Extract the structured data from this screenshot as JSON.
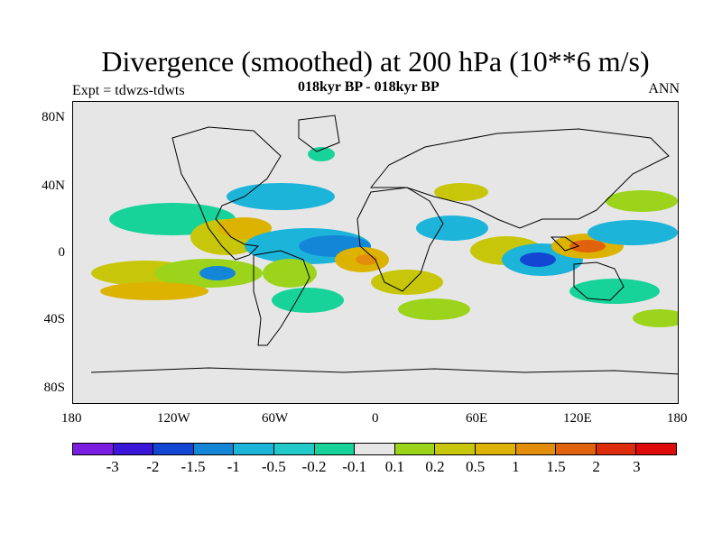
{
  "title": "Divergence (smoothed) at 200 hPa (10**6 m/s)",
  "subtitle": "018kyr BP - 018kyr BP",
  "expt": "Expt = tdwzs-tdwts",
  "season": "ANN",
  "y_ticks": [
    "80N",
    "40N",
    "0",
    "40S",
    "80S"
  ],
  "x_ticks": [
    "180",
    "120W",
    "60W",
    "0",
    "60E",
    "120E",
    "180"
  ],
  "colorbar": {
    "colors": [
      "#7b1de0",
      "#3a16d9",
      "#1346d2",
      "#1386d8",
      "#1db4da",
      "#22c9c8",
      "#17d39a",
      "#e6e6e6",
      "#9bd41b",
      "#c8c60b",
      "#dcb300",
      "#e38d0c",
      "#e0620c",
      "#dd2c0c",
      "#de0b0b"
    ],
    "labels": [
      "-3",
      "-2",
      "-1.5",
      "-1",
      "-0.5",
      "-0.2",
      "-0.1",
      "0.1",
      "0.2",
      "0.5",
      "1",
      "1.5",
      "2",
      "3"
    ]
  }
}
